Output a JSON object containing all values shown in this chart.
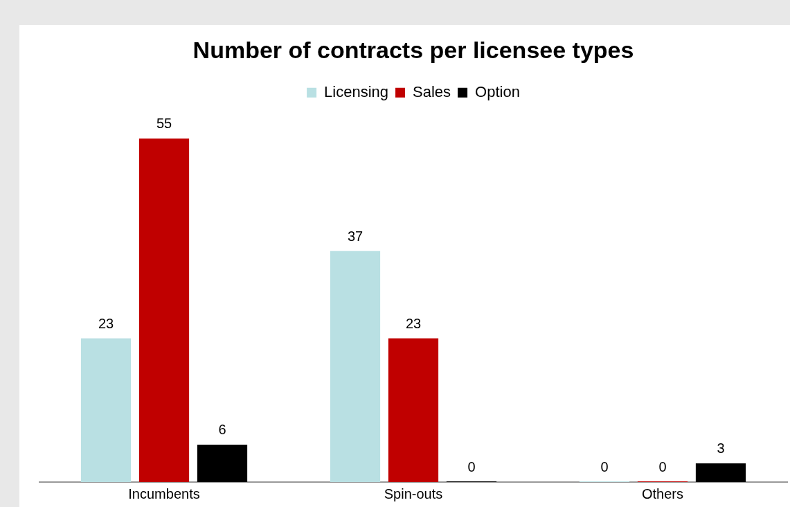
{
  "chart_data": {
    "type": "bar",
    "title": "Number of contracts per licensee types",
    "categories": [
      "Incumbents",
      "Spin-outs",
      "Others"
    ],
    "series": [
      {
        "name": "Licensing",
        "color": "#b9e0e3",
        "values": [
          23,
          37,
          0
        ]
      },
      {
        "name": "Sales",
        "color": "#c00000",
        "values": [
          55,
          23,
          0
        ]
      },
      {
        "name": "Option",
        "color": "#000000",
        "values": [
          6,
          0,
          3
        ]
      }
    ],
    "data_labels": true,
    "legend": "top",
    "grid": false
  }
}
